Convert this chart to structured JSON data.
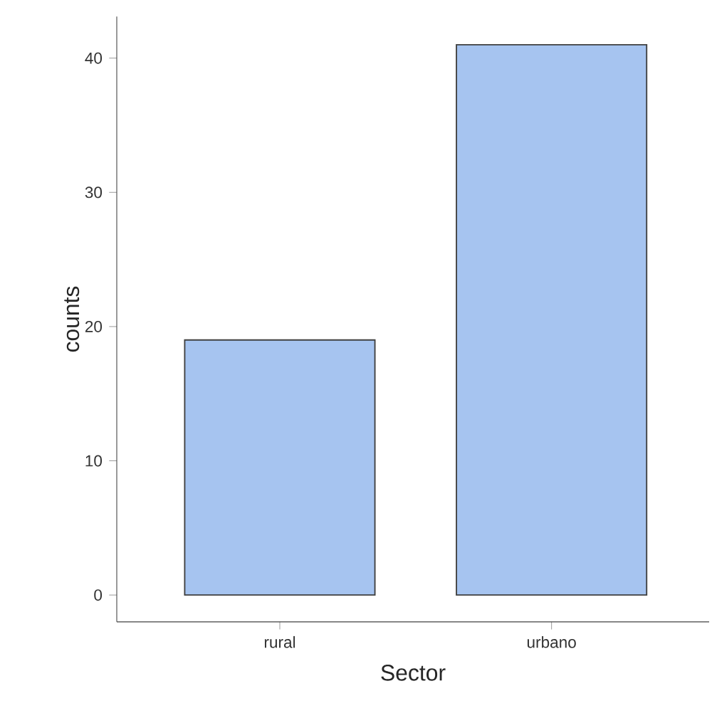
{
  "chart_data": {
    "type": "bar",
    "xlabel": "Sector",
    "ylabel": "counts",
    "categories": [
      "rural",
      "urbano"
    ],
    "values": [
      19,
      41
    ],
    "color": "#a6c4f0",
    "ylim": [
      -2,
      43.1
    ],
    "yticks": [
      0,
      10,
      20,
      30,
      40
    ]
  }
}
